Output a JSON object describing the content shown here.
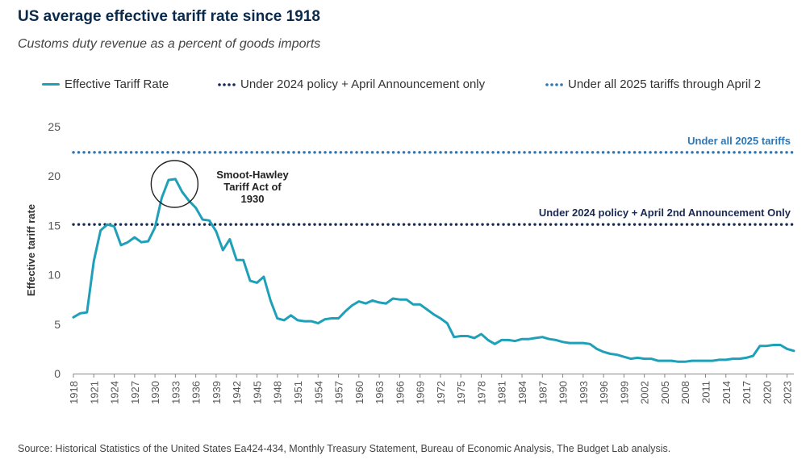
{
  "chart_data": {
    "type": "line",
    "title": "US average effective tariff rate since 1918",
    "subtitle": "Customs duty revenue as a percent of goods imports",
    "xlabel": "",
    "ylabel": "Effective tariff rate",
    "xlim": [
      1918,
      2024
    ],
    "ylim": [
      0,
      25
    ],
    "yticks": [
      "0",
      "5",
      "10",
      "15",
      "20",
      "25"
    ],
    "xticks": [
      "1918",
      "1921",
      "1924",
      "1927",
      "1930",
      "1933",
      "1936",
      "1939",
      "1942",
      "1945",
      "1948",
      "1951",
      "1954",
      "1957",
      "1960",
      "1963",
      "1966",
      "1969",
      "1972",
      "1975",
      "1978",
      "1981",
      "1984",
      "1987",
      "1990",
      "1993",
      "1996",
      "1999",
      "2002",
      "2005",
      "2008",
      "2011",
      "2014",
      "2017",
      "2020",
      "2023"
    ],
    "legend": [
      {
        "label": "Effective Tariff Rate",
        "style": "solid",
        "color": "#1ea0b8"
      },
      {
        "label": "Under 2024 policy + April Announcement only",
        "style": "dotted",
        "color": "#1b2a55"
      },
      {
        "label": "Under all 2025 tariffs through April 2",
        "style": "dotted",
        "color": "#2f77b5"
      }
    ],
    "series": [
      {
        "name": "Effective Tariff Rate",
        "color": "#1ea0b8",
        "x": [
          1918,
          1919,
          1920,
          1921,
          1922,
          1923,
          1924,
          1925,
          1926,
          1927,
          1928,
          1929,
          1930,
          1931,
          1932,
          1933,
          1934,
          1935,
          1936,
          1937,
          1938,
          1939,
          1940,
          1941,
          1942,
          1943,
          1944,
          1945,
          1946,
          1947,
          1948,
          1949,
          1950,
          1951,
          1952,
          1953,
          1954,
          1955,
          1956,
          1957,
          1958,
          1959,
          1960,
          1961,
          1962,
          1963,
          1964,
          1965,
          1966,
          1967,
          1968,
          1969,
          1970,
          1971,
          1972,
          1973,
          1974,
          1975,
          1976,
          1977,
          1978,
          1979,
          1980,
          1981,
          1982,
          1983,
          1984,
          1985,
          1986,
          1987,
          1988,
          1989,
          1990,
          1991,
          1992,
          1993,
          1994,
          1995,
          1996,
          1997,
          1998,
          1999,
          2000,
          2001,
          2002,
          2003,
          2004,
          2005,
          2006,
          2007,
          2008,
          2009,
          2010,
          2011,
          2012,
          2013,
          2014,
          2015,
          2016,
          2017,
          2018,
          2019,
          2020,
          2021,
          2022,
          2023,
          2024
        ],
        "values": [
          5.7,
          6.1,
          6.2,
          11.4,
          14.5,
          15.1,
          14.9,
          13.0,
          13.3,
          13.8,
          13.3,
          13.4,
          14.8,
          17.8,
          19.6,
          19.7,
          18.4,
          17.5,
          16.8,
          15.6,
          15.5,
          14.4,
          12.5,
          13.6,
          11.5,
          11.5,
          9.4,
          9.2,
          9.8,
          7.4,
          5.6,
          5.4,
          5.9,
          5.4,
          5.3,
          5.3,
          5.1,
          5.5,
          5.6,
          5.6,
          6.3,
          6.9,
          7.3,
          7.1,
          7.4,
          7.2,
          7.1,
          7.6,
          7.5,
          7.5,
          7.0,
          7.0,
          6.5,
          6.0,
          5.6,
          5.1,
          3.7,
          3.8,
          3.8,
          3.6,
          4.0,
          3.4,
          3.0,
          3.4,
          3.4,
          3.3,
          3.5,
          3.5,
          3.6,
          3.7,
          3.5,
          3.4,
          3.2,
          3.1,
          3.1,
          3.1,
          3.0,
          2.5,
          2.2,
          2.0,
          1.9,
          1.7,
          1.5,
          1.6,
          1.5,
          1.5,
          1.3,
          1.3,
          1.3,
          1.2,
          1.2,
          1.3,
          1.3,
          1.3,
          1.3,
          1.4,
          1.4,
          1.5,
          1.5,
          1.6,
          1.8,
          2.8,
          2.8,
          2.9,
          2.9,
          2.5,
          2.3
        ]
      }
    ],
    "reference_lines": [
      {
        "name": "Under all 2025 tariffs",
        "value": 22.4,
        "color": "#2f77b5",
        "label": "Under all 2025 tariffs"
      },
      {
        "name": "Under 2024 policy + April 2nd Announcement Only",
        "value": 15.1,
        "color": "#1b2a55",
        "label": "Under 2024 policy + April 2nd Announcement Only"
      }
    ],
    "annotations": [
      {
        "text_lines": [
          "Smoot-Hawley",
          "Tariff Act of",
          "1930"
        ],
        "x": 1933,
        "y": 19.2
      }
    ]
  },
  "source": "Source: Historical Statistics of the United States Ea424-434, Monthly Treasury Statement, Bureau of Economic Analysis, The Budget Lab analysis."
}
